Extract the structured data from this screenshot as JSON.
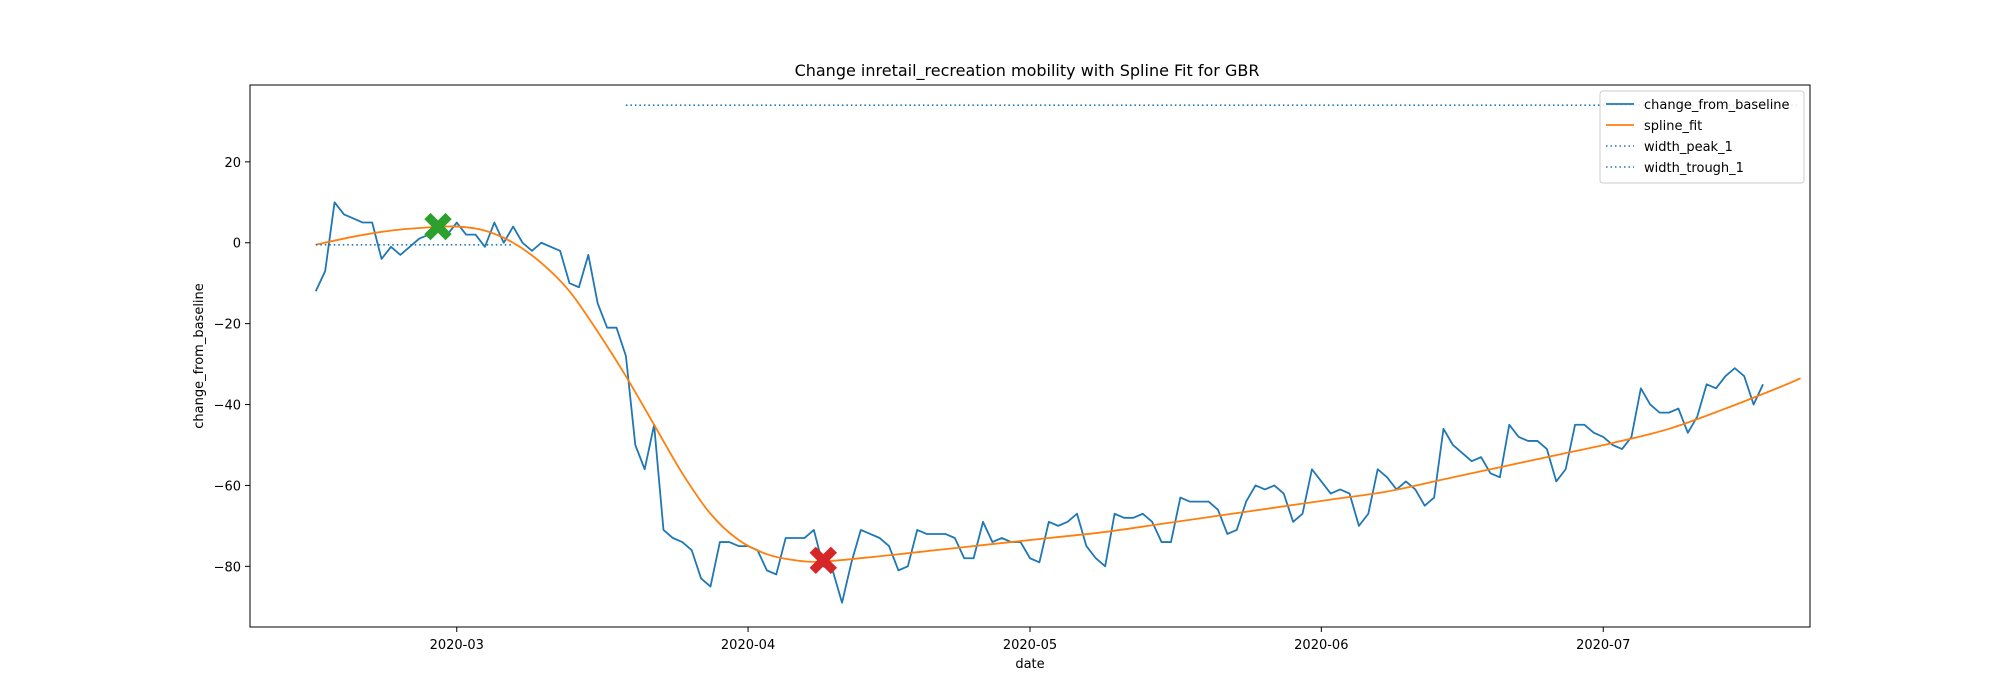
{
  "chart_data": {
    "type": "line",
    "title": "Change inretail_recreation mobility with Spline Fit for GBR",
    "xlabel": "date",
    "ylabel": "change_from_baseline",
    "x_axis_type": "date",
    "xlim": [
      "2020-02-08",
      "2020-07-23"
    ],
    "ylim": [
      -95,
      39
    ],
    "x_ticks": [
      "2020-03-01",
      "2020-04-01",
      "2020-05-01",
      "2020-06-01",
      "2020-07-01"
    ],
    "x_tick_labels": [
      "2020-03",
      "2020-04",
      "2020-05",
      "2020-06",
      "2020-07"
    ],
    "y_ticks": [
      20,
      0,
      -20,
      -40,
      -60,
      -80
    ],
    "y_tick_labels": [
      "20",
      "0",
      "−20",
      "−40",
      "−60",
      "−80"
    ],
    "grid": false,
    "legend_position": "top-right",
    "series": [
      {
        "name": "change_from_baseline",
        "color": "#1f77b4",
        "style": "solid",
        "start_date": "2020-02-15",
        "values": [
          -12,
          -7,
          10,
          7,
          6,
          5,
          5,
          -4,
          -1,
          -3,
          -1,
          1,
          2,
          3,
          2,
          5,
          2,
          2,
          -1,
          5,
          0,
          4,
          0,
          -2,
          0,
          -1,
          -2,
          -10,
          -11,
          -3,
          -15,
          -21,
          -21,
          -28,
          -50,
          -56,
          -45,
          -71,
          -73,
          -74,
          -76,
          -83,
          -85,
          -74,
          -74,
          -75,
          -75,
          -76,
          -81,
          -82,
          -73,
          -73,
          -73,
          -71,
          -80,
          -81,
          -89,
          -79,
          -71,
          -72,
          -73,
          -75,
          -81,
          -80,
          -71,
          -72,
          -72,
          -72,
          -73,
          -78,
          -78,
          -69,
          -74,
          -73,
          -74,
          -74,
          -78,
          -79,
          -69,
          -70,
          -69,
          -67,
          -75,
          -78,
          -80,
          -67,
          -68,
          -68,
          -67,
          -69,
          -74,
          -74,
          -63,
          -64,
          -64,
          -64,
          -66,
          -72,
          -71,
          -64,
          -60,
          -61,
          -60,
          -62,
          -69,
          -67,
          -56,
          -59,
          -62,
          -61,
          -62,
          -70,
          -67,
          -56,
          -58,
          -61,
          -59,
          -61,
          -65,
          -63,
          -46,
          -50,
          -52,
          -54,
          -53,
          -57,
          -58,
          -45,
          -48,
          -49,
          -49,
          -51,
          -59,
          -56,
          -45,
          -45,
          -47,
          -48,
          -50,
          -51,
          -48,
          -36,
          -40,
          -42,
          -42,
          -41,
          -47,
          -43,
          -35,
          -36,
          -33,
          -31,
          -33,
          -40,
          -35
        ]
      },
      {
        "name": "spline_fit",
        "color": "#ff7f0e",
        "style": "solid",
        "points": [
          [
            "2020-02-15",
            -0.5
          ],
          [
            "2020-02-19",
            1.5
          ],
          [
            "2020-02-23",
            3
          ],
          [
            "2020-02-27",
            3.8
          ],
          [
            "2020-03-01",
            4
          ],
          [
            "2020-03-04",
            3
          ],
          [
            "2020-03-07",
            0
          ],
          [
            "2020-03-10",
            -5
          ],
          [
            "2020-03-13",
            -12
          ],
          [
            "2020-03-16",
            -22
          ],
          [
            "2020-03-19",
            -33
          ],
          [
            "2020-03-22",
            -45
          ],
          [
            "2020-03-25",
            -57
          ],
          [
            "2020-03-28",
            -67
          ],
          [
            "2020-03-31",
            -73.5
          ],
          [
            "2020-04-03",
            -77
          ],
          [
            "2020-04-06",
            -78.5
          ],
          [
            "2020-04-09",
            -78.8
          ],
          [
            "2020-04-15",
            -77.5
          ],
          [
            "2020-04-21",
            -76
          ],
          [
            "2020-04-27",
            -74.5
          ],
          [
            "2020-05-03",
            -73
          ],
          [
            "2020-05-09",
            -71.5
          ],
          [
            "2020-05-15",
            -69.5
          ],
          [
            "2020-05-21",
            -67.5
          ],
          [
            "2020-05-27",
            -65.5
          ],
          [
            "2020-06-02",
            -63.5
          ],
          [
            "2020-06-08",
            -61.5
          ],
          [
            "2020-06-14",
            -58.5
          ],
          [
            "2020-06-20",
            -55.5
          ],
          [
            "2020-06-26",
            -52.5
          ],
          [
            "2020-07-02",
            -49.5
          ],
          [
            "2020-07-08",
            -46
          ],
          [
            "2020-07-14",
            -41
          ],
          [
            "2020-07-20",
            -35.5
          ],
          [
            "2020-07-22",
            -33.5
          ]
        ]
      },
      {
        "name": "width_peak_1",
        "color": "#1f77b4",
        "style": "dotted",
        "points": [
          [
            "2020-02-15",
            -0.5
          ],
          [
            "2020-03-07",
            -0.5
          ]
        ]
      },
      {
        "name": "width_trough_1",
        "color": "#1f77b4",
        "style": "dotted",
        "points": [
          [
            "2020-03-19",
            34
          ],
          [
            "2020-07-22",
            34
          ]
        ]
      }
    ],
    "markers": [
      {
        "label": "peak",
        "date": "2020-02-28",
        "value": 4,
        "color": "#2ca02c",
        "symbol": "X"
      },
      {
        "label": "trough",
        "date": "2020-04-09",
        "value": -78.5,
        "color": "#d62728",
        "symbol": "X"
      }
    ]
  }
}
